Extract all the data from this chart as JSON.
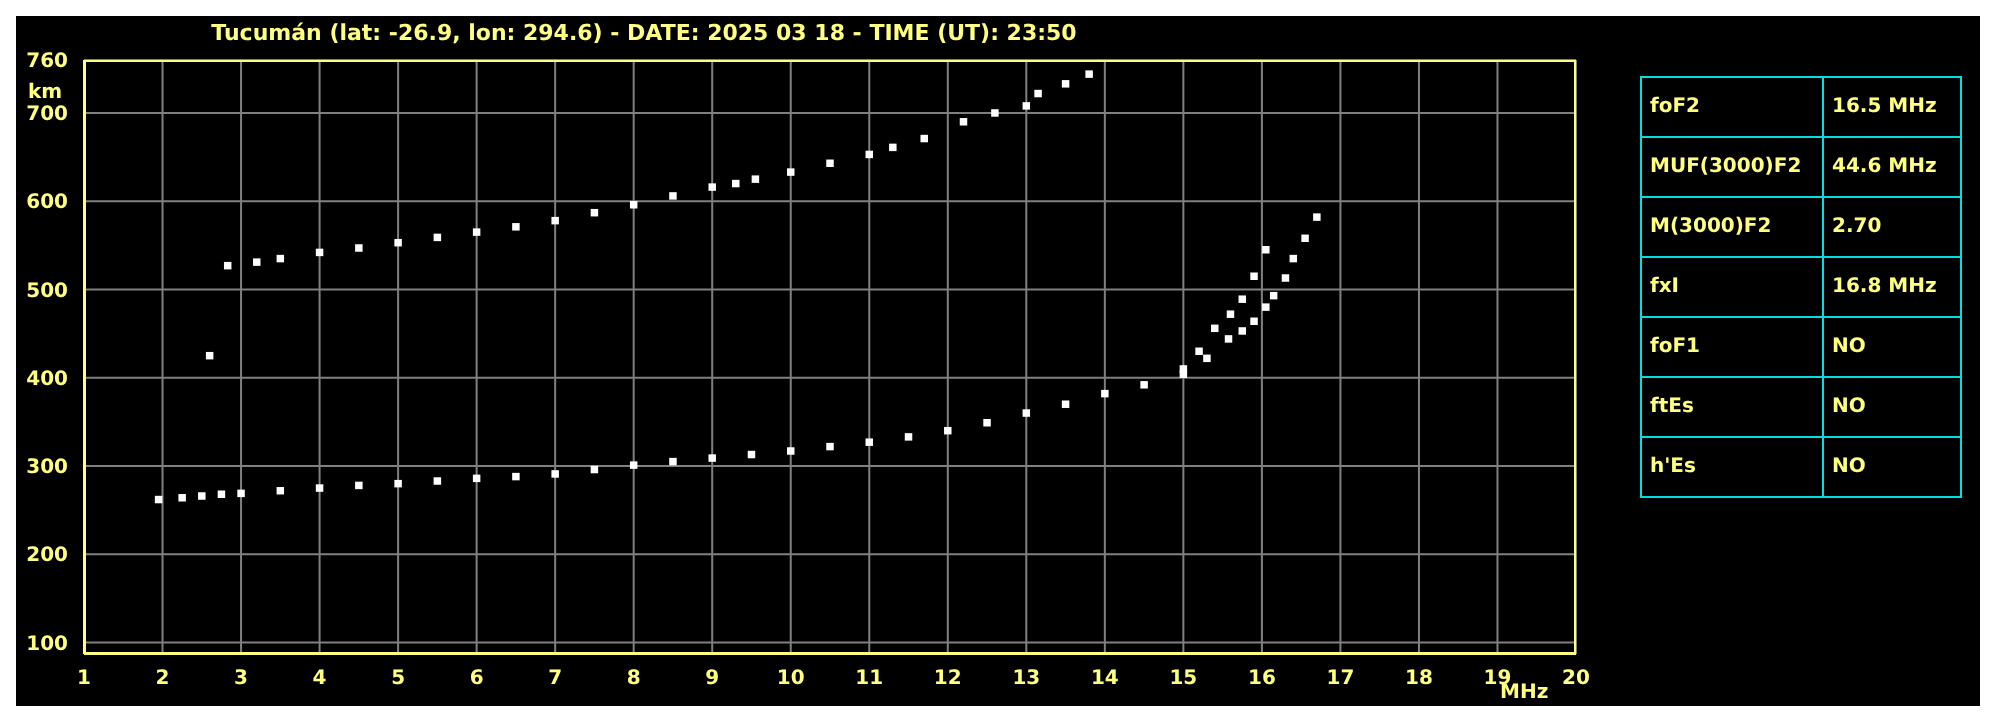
{
  "chart_data": [
    {
      "type": "scatter",
      "title": "Tucumán (lat: -26.9, lon: 294.6) - DATE: 2025 03 18 - TIME (UT): 23:50",
      "xlabel": "MHz",
      "ylabel": "km",
      "series": [
        {
          "color": "#ffffff",
          "x": [
            1.95,
            2.25,
            2.5,
            2.75,
            3,
            3.5,
            4,
            4.5,
            5,
            5.5,
            6,
            6.5,
            7,
            7.5,
            8,
            8.5,
            9,
            9.5,
            10,
            10.5,
            11,
            11.5,
            12,
            12.5,
            13,
            13.5,
            14,
            14.5,
            15,
            15.3,
            15.575,
            15.75,
            15.9,
            16.05,
            16.15,
            16.3,
            16.4,
            16.55,
            16.7
          ],
          "values": [
            262,
            264,
            266,
            268,
            269,
            272,
            275,
            278,
            280,
            283,
            286,
            288,
            291,
            296,
            301,
            305,
            309,
            313,
            317,
            322,
            327,
            333,
            340,
            349,
            360,
            370,
            382,
            392,
            404,
            422,
            444,
            453,
            464,
            480,
            493,
            513,
            535,
            558,
            582
          ]
        },
        {
          "color": "#ffffff",
          "x": [
            15,
            15.2,
            15.4,
            15.6,
            15.75,
            15.9,
            16.05
          ],
          "values": [
            410,
            430,
            456,
            472,
            489,
            515,
            545
          ]
        },
        {
          "color": "#ffffff",
          "x": [
            2.6,
            2.83,
            3.2,
            3.5,
            4,
            4.5,
            5,
            5.5,
            6,
            6.5,
            7,
            7.5,
            8,
            8.5,
            9,
            9.3,
            9.55,
            10,
            10.5,
            11,
            11.3,
            11.7,
            12.2,
            12.6,
            13,
            13.15,
            13.5,
            13.8
          ],
          "values": [
            425,
            527,
            531,
            535,
            542,
            547,
            553,
            559,
            565,
            571,
            578,
            587,
            596,
            606,
            616,
            620,
            625,
            633,
            643,
            653,
            661,
            671,
            690,
            700,
            708,
            722,
            733,
            744
          ]
        }
      ],
      "xlim": [
        1,
        20
      ],
      "xticks": [
        1,
        2,
        3,
        4,
        5,
        6,
        7,
        8,
        9,
        10,
        11,
        12,
        13,
        14,
        15,
        16,
        17,
        18,
        19,
        20
      ],
      "ylim": [
        87,
        760
      ],
      "yticks": [
        100,
        200,
        300,
        400,
        500,
        600,
        700,
        760
      ],
      "grid": true,
      "marker": "square"
    },
    {
      "type": "other",
      "annotations": [
        "foF2",
        "16.5 MHz",
        "MUF(3000)F2",
        "44.6 MHz",
        "M(3000)F2",
        "2.70",
        "fxI",
        "16.8 MHz",
        "foF1",
        "NO",
        "ftEs",
        "NO",
        "h'Es",
        "NO"
      ]
    }
  ]
}
